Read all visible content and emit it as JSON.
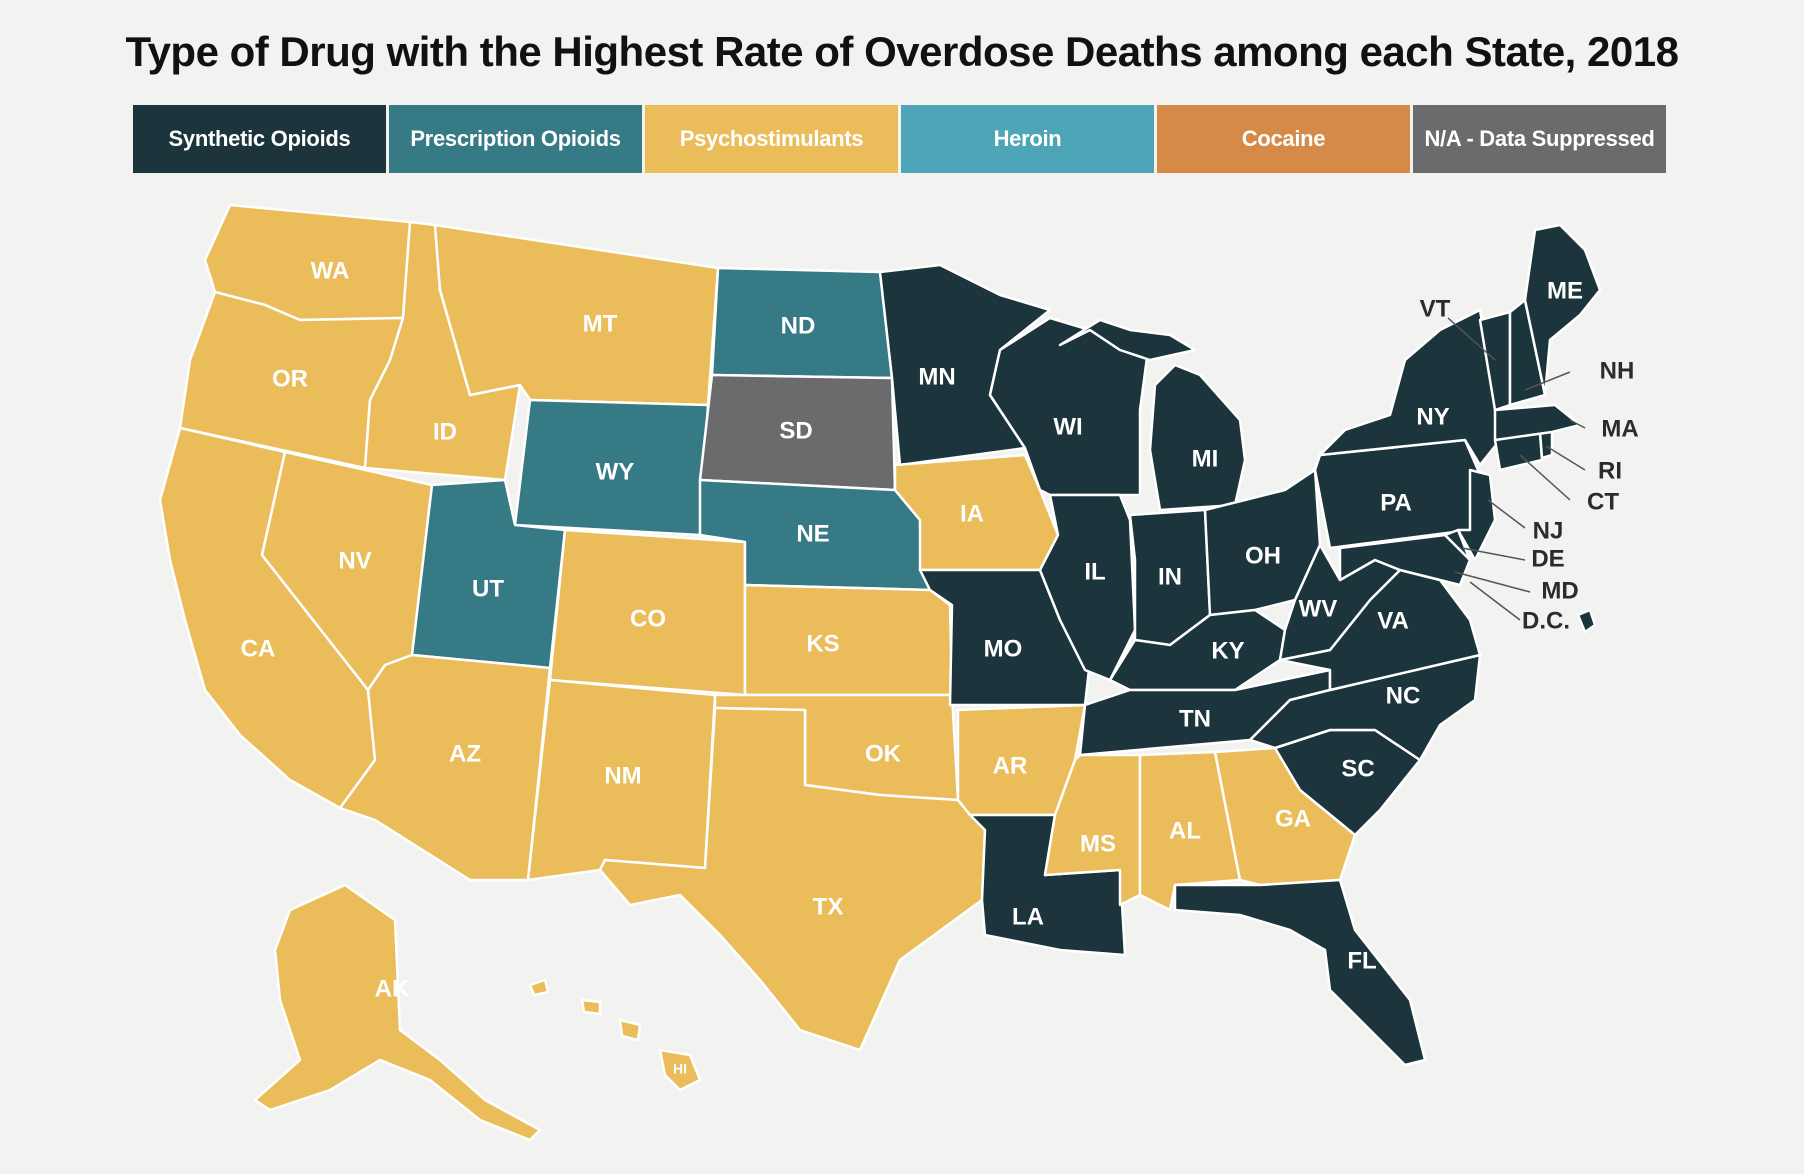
{
  "title": "Type of Drug with the Highest Rate of Overdose Deaths among each State, 2018",
  "colors": {
    "synthetic": "#1c343b",
    "prescription": "#367a85",
    "psycho": "#ebbc5a",
    "heroin": "#4ea5b8",
    "cocaine": "#d68a47",
    "na": "#6b6b6d"
  },
  "legend": [
    {
      "label": "Synthetic Opioids",
      "color_key": "synthetic"
    },
    {
      "label": "Prescription Opioids",
      "color_key": "prescription"
    },
    {
      "label": "Psychostimulants",
      "color_key": "psycho"
    },
    {
      "label": "Heroin",
      "color_key": "heroin"
    },
    {
      "label": "Cocaine",
      "color_key": "cocaine"
    },
    {
      "label": "N/A - Data Suppressed",
      "color_key": "na"
    }
  ],
  "states": {
    "WA": {
      "label": "WA",
      "category": "psycho"
    },
    "OR": {
      "label": "OR",
      "category": "psycho"
    },
    "CA": {
      "label": "CA",
      "category": "psycho"
    },
    "ID": {
      "label": "ID",
      "category": "psycho"
    },
    "NV": {
      "label": "NV",
      "category": "psycho"
    },
    "MT": {
      "label": "MT",
      "category": "psycho"
    },
    "WY": {
      "label": "WY",
      "category": "prescription"
    },
    "UT": {
      "label": "UT",
      "category": "prescription"
    },
    "AZ": {
      "label": "AZ",
      "category": "psycho"
    },
    "CO": {
      "label": "CO",
      "category": "psycho"
    },
    "NM": {
      "label": "NM",
      "category": "psycho"
    },
    "ND": {
      "label": "ND",
      "category": "prescription"
    },
    "SD": {
      "label": "SD",
      "category": "na"
    },
    "NE": {
      "label": "NE",
      "category": "prescription"
    },
    "KS": {
      "label": "KS",
      "category": "psycho"
    },
    "OK": {
      "label": "OK",
      "category": "psycho"
    },
    "TX": {
      "label": "TX",
      "category": "psycho"
    },
    "MN": {
      "label": "MN",
      "category": "synthetic"
    },
    "IA": {
      "label": "IA",
      "category": "psycho"
    },
    "MO": {
      "label": "MO",
      "category": "synthetic"
    },
    "AR": {
      "label": "AR",
      "category": "psycho"
    },
    "LA": {
      "label": "LA",
      "category": "synthetic"
    },
    "WI": {
      "label": "WI",
      "category": "synthetic"
    },
    "IL": {
      "label": "IL",
      "category": "synthetic"
    },
    "MI": {
      "label": "MI",
      "category": "synthetic"
    },
    "IN": {
      "label": "IN",
      "category": "synthetic"
    },
    "OH": {
      "label": "OH",
      "category": "synthetic"
    },
    "KY": {
      "label": "KY",
      "category": "synthetic"
    },
    "TN": {
      "label": "TN",
      "category": "synthetic"
    },
    "MS": {
      "label": "MS",
      "category": "psycho"
    },
    "AL": {
      "label": "AL",
      "category": "psycho"
    },
    "GA": {
      "label": "GA",
      "category": "psycho"
    },
    "FL": {
      "label": "FL",
      "category": "synthetic"
    },
    "SC": {
      "label": "SC",
      "category": "synthetic"
    },
    "NC": {
      "label": "NC",
      "category": "synthetic"
    },
    "VA": {
      "label": "VA",
      "category": "synthetic"
    },
    "WV": {
      "label": "WV",
      "category": "synthetic"
    },
    "PA": {
      "label": "PA",
      "category": "synthetic"
    },
    "NY": {
      "label": "NY",
      "category": "synthetic"
    },
    "ME": {
      "label": "ME",
      "category": "synthetic"
    },
    "VT": {
      "label": "VT",
      "category": "synthetic"
    },
    "NH": {
      "label": "NH",
      "category": "synthetic"
    },
    "MA": {
      "label": "MA",
      "category": "synthetic"
    },
    "RI": {
      "label": "RI",
      "category": "synthetic"
    },
    "CT": {
      "label": "CT",
      "category": "synthetic"
    },
    "NJ": {
      "label": "NJ",
      "category": "synthetic"
    },
    "DE": {
      "label": "DE",
      "category": "synthetic"
    },
    "MD": {
      "label": "MD",
      "category": "synthetic"
    },
    "DC": {
      "label": "D.C.",
      "category": "synthetic"
    },
    "AK": {
      "label": "AK",
      "category": "psycho"
    },
    "HI": {
      "label": "HI",
      "category": "psycho"
    }
  }
}
